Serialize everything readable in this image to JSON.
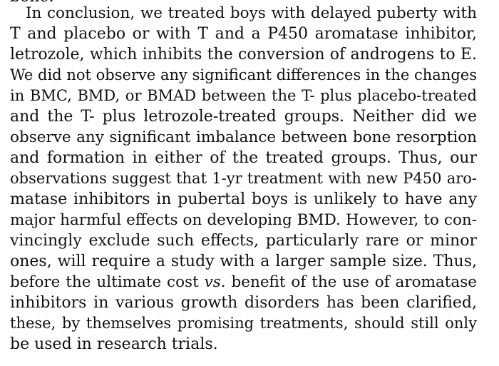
{
  "paragraph": {
    "partial_top_word": "bone.",
    "lines": [
      "In conclusion, we treated boys with delayed puberty with",
      "T and placebo or with T and a P450 aromatase inhibitor,",
      "letrozole, which inhibits the conversion of androgens to E.",
      "We did not observe any significant differences in the changes",
      "in BMC, BMD, or BMAD between the T- plus placebo-treated",
      "and the T- plus letrozole-treated groups. Neither did we",
      "observe any significant imbalance between bone resorption",
      "and formation in either of the treated groups. Thus, our",
      "observations suggest that 1-yr treatment with new P450 aro-",
      "matase inhibitors in pubertal boys is unlikely to have any",
      "major harmful effects on developing BMD. However, to con-",
      "vincingly exclude such effects, particularly rare or minor",
      "ones, will require a study with a larger sample size. Thus,",
      "before the ultimate cost vs. benefit of the use of aromatase",
      "inhibitors in various growth disorders has been clarified,",
      "these, by themselves promising treatments, should still only",
      "be used in research trials."
    ],
    "line14_before": "before the ultimate cost ",
    "line14_italic": "vs.",
    "line14_after": " benefit of the use of aromatase"
  }
}
